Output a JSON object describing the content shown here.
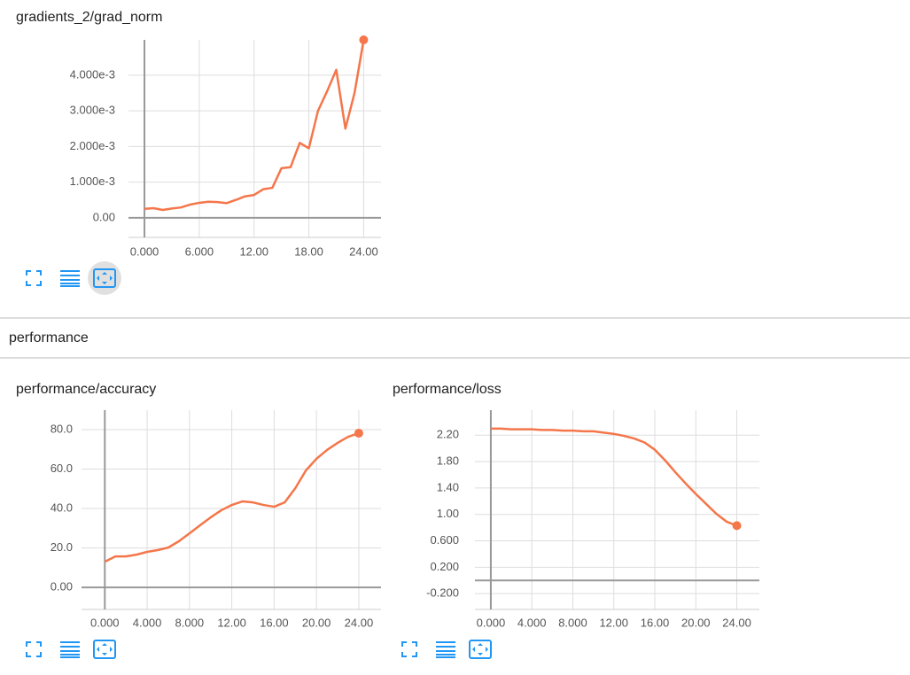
{
  "section_title": "performance",
  "chart_data": [
    {
      "type": "line",
      "title": "gradients_2/grad_norm",
      "color": "#f4764a",
      "x": [
        0,
        1,
        2,
        3,
        4,
        5,
        6,
        7,
        8,
        9,
        10,
        11,
        12,
        13,
        14,
        15,
        16,
        17,
        18,
        19,
        20,
        21,
        22,
        23,
        24
      ],
      "values": [
        0.00025,
        0.00027,
        0.00022,
        0.00026,
        0.00029,
        0.00037,
        0.00042,
        0.00045,
        0.00044,
        0.00041,
        0.0005,
        0.0006,
        0.00064,
        0.0008,
        0.00084,
        0.00139,
        0.00142,
        0.0021,
        0.00195,
        0.003,
        0.00355,
        0.00415,
        0.0025,
        0.0035,
        0.00499
      ],
      "xlim": [
        -1.75,
        25.9
      ],
      "ylim": [
        -0.00055,
        0.00499
      ],
      "xticks": [
        {
          "value": 0,
          "label": "0.000"
        },
        {
          "value": 6,
          "label": "6.000"
        },
        {
          "value": 12,
          "label": "12.00"
        },
        {
          "value": 18,
          "label": "18.00"
        },
        {
          "value": 24,
          "label": "24.00"
        }
      ],
      "yticks": [
        {
          "value": 0,
          "label": "0.00"
        },
        {
          "value": 0.001,
          "label": "1.000e-3"
        },
        {
          "value": 0.002,
          "label": "2.000e-3"
        },
        {
          "value": 0.003,
          "label": "3.000e-3"
        },
        {
          "value": 0.004,
          "label": "4.000e-3"
        }
      ],
      "grid": true
    },
    {
      "type": "line",
      "title": "performance/accuracy",
      "color": "#f4764a",
      "x": [
        0,
        1,
        2,
        3,
        4,
        5,
        6,
        7,
        8,
        9,
        10,
        11,
        12,
        13,
        14,
        15,
        16,
        17,
        18,
        19,
        20,
        21,
        22,
        23,
        24
      ],
      "values": [
        13,
        15.7,
        15.7,
        16.6,
        18,
        18.9,
        20.2,
        23.4,
        27.4,
        31.5,
        35.5,
        39.1,
        41.8,
        43.6,
        43.1,
        41.8,
        40.9,
        43.1,
        50.3,
        59.3,
        65.2,
        69.7,
        73.3,
        76.4,
        78.2
      ],
      "xlim": [
        -2.2,
        26.1
      ],
      "ylim": [
        -11.2,
        89.9
      ],
      "xticks": [
        {
          "value": 0,
          "label": "0.000"
        },
        {
          "value": 4,
          "label": "4.000"
        },
        {
          "value": 8,
          "label": "8.000"
        },
        {
          "value": 12,
          "label": "12.00"
        },
        {
          "value": 16,
          "label": "16.00"
        },
        {
          "value": 20,
          "label": "20.00"
        },
        {
          "value": 24,
          "label": "24.00"
        }
      ],
      "yticks": [
        {
          "value": 0,
          "label": "0.00"
        },
        {
          "value": 20,
          "label": "20.0"
        },
        {
          "value": 40,
          "label": "40.0"
        },
        {
          "value": 60,
          "label": "60.0"
        },
        {
          "value": 80,
          "label": "80.0"
        }
      ],
      "grid": true
    },
    {
      "type": "line",
      "title": "performance/loss",
      "color": "#f4764a",
      "x": [
        0,
        1,
        2,
        3,
        4,
        5,
        6,
        7,
        8,
        9,
        10,
        11,
        12,
        13,
        14,
        15,
        16,
        17,
        18,
        19,
        20,
        21,
        22,
        23,
        24
      ],
      "values": [
        2.3,
        2.3,
        2.29,
        2.29,
        2.29,
        2.28,
        2.28,
        2.27,
        2.27,
        2.26,
        2.26,
        2.24,
        2.22,
        2.19,
        2.15,
        2.09,
        1.98,
        1.82,
        1.64,
        1.47,
        1.31,
        1.16,
        1.01,
        0.89,
        0.83
      ],
      "xlim": [
        -1.55,
        26.2
      ],
      "ylim": [
        -0.44,
        2.58
      ],
      "xticks": [
        {
          "value": 0,
          "label": "0.000"
        },
        {
          "value": 4,
          "label": "4.000"
        },
        {
          "value": 8,
          "label": "8.000"
        },
        {
          "value": 12,
          "label": "12.00"
        },
        {
          "value": 16,
          "label": "16.00"
        },
        {
          "value": 20,
          "label": "20.00"
        },
        {
          "value": 24,
          "label": "24.00"
        }
      ],
      "yticks": [
        {
          "value": -0.2,
          "label": "-0.200"
        },
        {
          "value": 0.2,
          "label": "0.200"
        },
        {
          "value": 0.6,
          "label": "0.600"
        },
        {
          "value": 1.0,
          "label": "1.00"
        },
        {
          "value": 1.4,
          "label": "1.40"
        },
        {
          "value": 1.8,
          "label": "1.80"
        },
        {
          "value": 2.2,
          "label": "2.20"
        }
      ],
      "grid": true
    }
  ]
}
